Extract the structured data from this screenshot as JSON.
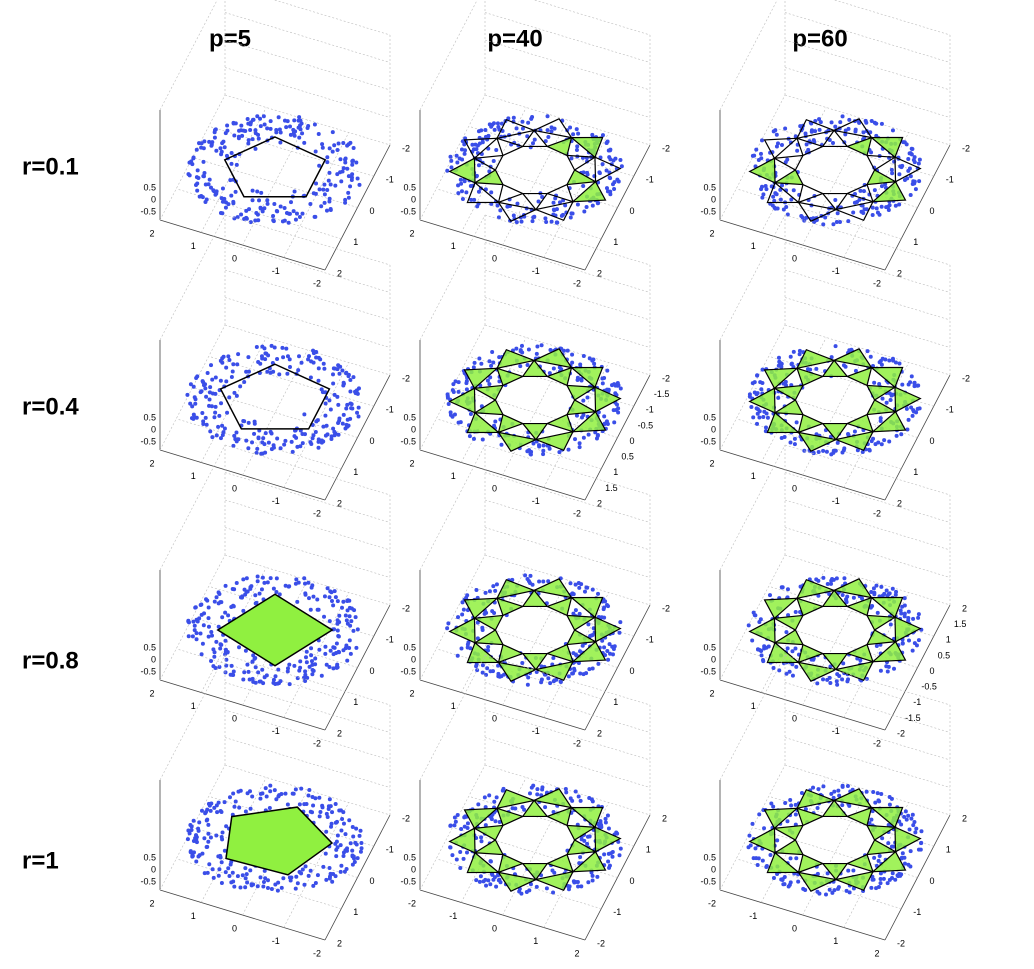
{
  "header": {
    "columns": [
      "p=5",
      "p=40",
      "p=60"
    ]
  },
  "rows": [
    {
      "label": "r=0.1",
      "panels": [
        {
          "z_ticks": [
            "0.5",
            "0",
            "-0.5"
          ],
          "x_ticks": [
            "2",
            "1",
            "0",
            "-1",
            "-2"
          ],
          "y_ticks": [
            "-2",
            "-1",
            "0",
            "1",
            "2"
          ]
        },
        {
          "z_ticks": [
            "0.5",
            "0",
            "-0.5"
          ],
          "x_ticks": [
            "2",
            "1",
            "0",
            "-1",
            "-2"
          ],
          "y_ticks": [
            "-2",
            "-1",
            "0",
            "1",
            "2"
          ]
        },
        {
          "z_ticks": [
            "0.5",
            "0",
            "-0.5"
          ],
          "x_ticks": [
            "2",
            "1",
            "0",
            "-1",
            "-2"
          ],
          "y_ticks": [
            "-2",
            "-1",
            "0",
            "1",
            "2"
          ]
        }
      ]
    },
    {
      "label": "r=0.4",
      "panels": [
        {
          "z_ticks": [
            "0.5",
            "0",
            "-0.5"
          ],
          "x_ticks": [
            "2",
            "1",
            "0",
            "-1",
            "-2"
          ],
          "y_ticks": [
            "-2",
            "-1",
            "0",
            "1",
            "2"
          ]
        },
        {
          "z_ticks": [
            "0.5",
            "0",
            "-0.5"
          ],
          "x_ticks": [
            "2",
            "1",
            "0",
            "-1",
            "-2"
          ],
          "y_ticks": [
            "-2",
            "-1.5",
            "-1",
            "-0.5",
            "0",
            "0.5",
            "1",
            "1.5",
            "2"
          ]
        },
        {
          "z_ticks": [
            "0.5",
            "0",
            "-0.5"
          ],
          "x_ticks": [
            "2",
            "1",
            "0",
            "-1",
            "-2"
          ],
          "y_ticks": [
            "-2",
            "-1",
            "0",
            "1",
            "2"
          ]
        }
      ]
    },
    {
      "label": "r=0.8",
      "panels": [
        {
          "z_ticks": [
            "0.5",
            "0",
            "-0.5"
          ],
          "x_ticks": [
            "2",
            "1",
            "0",
            "-1",
            "-2"
          ],
          "y_ticks": [
            "-2",
            "-1",
            "0",
            "1",
            "2"
          ]
        },
        {
          "z_ticks": [
            "0.5",
            "0",
            "-0.5"
          ],
          "x_ticks": [
            "2",
            "1",
            "0",
            "-1",
            "-2"
          ],
          "y_ticks": [
            "-2",
            "-1",
            "0",
            "1",
            "2"
          ]
        },
        {
          "z_ticks": [
            "0.5",
            "0",
            "-0.5"
          ],
          "x_ticks": [
            "2",
            "1",
            "0",
            "-1",
            "-2"
          ],
          "y_ticks": [
            "2",
            "1.5",
            "1",
            "0.5",
            "0",
            "-0.5",
            "-1",
            "-1.5",
            "-2"
          ]
        }
      ]
    },
    {
      "label": "r=1",
      "panels": [
        {
          "z_ticks": [
            "0.5",
            "0",
            "-0.5"
          ],
          "x_ticks": [
            "2",
            "1",
            "0",
            "-1",
            "-2"
          ],
          "y_ticks": [
            "-2",
            "-1",
            "0",
            "1",
            "2"
          ]
        },
        {
          "z_ticks": [
            "0.5",
            "0",
            "-0.5"
          ],
          "x_ticks": [
            "-2",
            "-1",
            "0",
            "1",
            "2"
          ],
          "y_ticks": [
            "2",
            "1",
            "0",
            "-1",
            "-2"
          ]
        },
        {
          "z_ticks": [
            "0.5",
            "0",
            "-0.5"
          ],
          "x_ticks": [
            "-2",
            "-1",
            "0",
            "1",
            "2"
          ],
          "y_ticks": [
            "2",
            "1",
            "0",
            "-1",
            "-2"
          ]
        }
      ]
    }
  ]
}
